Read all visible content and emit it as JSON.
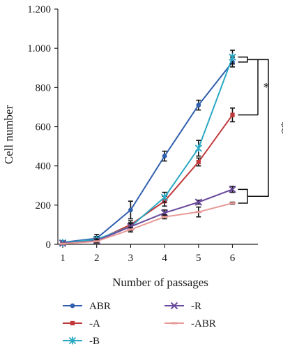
{
  "chart_data": {
    "type": "line",
    "xlabel": "Number of passages",
    "ylabel": "Cell number",
    "x": [
      1,
      2,
      3,
      4,
      5,
      6
    ],
    "ylim": [
      0,
      1200
    ],
    "yticks": [
      0,
      200,
      400,
      600,
      800,
      1000,
      1200
    ],
    "ytick_labels": [
      "0",
      "200",
      "400",
      "600",
      "800",
      "1.000",
      "1.200"
    ],
    "xtick_labels": [
      "1",
      "2",
      "3",
      "4",
      "5",
      "6"
    ],
    "grid": false,
    "legend_position": "bottom",
    "series": [
      {
        "name": "ABR",
        "color": "#2f5fae",
        "marker": "circle",
        "values": [
          10,
          30,
          175,
          450,
          710,
          930
        ],
        "errors": [
          8,
          20,
          45,
          25,
          25,
          25
        ]
      },
      {
        "name": "-A",
        "color": "#c0393b",
        "marker": "square",
        "values": [
          5,
          20,
          100,
          220,
          420,
          660
        ],
        "errors": [
          5,
          12,
          20,
          25,
          20,
          35
        ]
      },
      {
        "name": "-B",
        "color": "#2aa8c4",
        "marker": "asterisk",
        "values": [
          8,
          25,
          90,
          240,
          490,
          955
        ],
        "errors": [
          6,
          15,
          20,
          25,
          40,
          35
        ]
      },
      {
        "name": "-R",
        "color": "#6a4a9c",
        "marker": "x",
        "values": [
          5,
          18,
          90,
          160,
          215,
          280
        ],
        "errors": [
          4,
          10,
          15,
          15,
          10,
          15
        ]
      },
      {
        "name": "-ABR",
        "color": "#e79a97",
        "marker": "dash",
        "values": [
          3,
          15,
          75,
          140,
          165,
          210
        ],
        "errors": [
          3,
          8,
          12,
          10,
          25,
          5
        ]
      }
    ],
    "annotations": [
      {
        "text": "*",
        "between": [
          "-A",
          "ABR/-B"
        ]
      },
      {
        "text": "**",
        "between": [
          "-R/-ABR",
          "ABR/-B"
        ]
      }
    ]
  }
}
